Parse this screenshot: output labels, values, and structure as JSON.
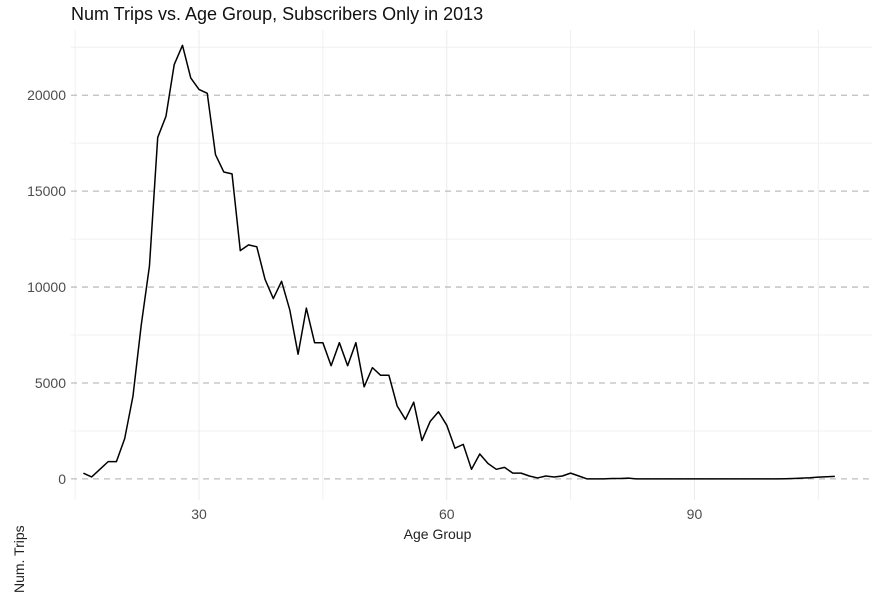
{
  "chart_data": {
    "type": "line",
    "title": "Num Trips vs. Age Group, Subscribers Only in 2013",
    "xlabel": "Age Group",
    "ylabel": "Num. Trips",
    "xlim": [
      14.5,
      111.5
    ],
    "ylim": [
      -1100,
      23400
    ],
    "x_ticks": [
      30,
      60,
      90
    ],
    "y_ticks": [
      0,
      5000,
      10000,
      15000,
      20000
    ],
    "grid": true,
    "legend": "none",
    "line_color": "#000000",
    "series": [
      {
        "x": [
          16,
          17,
          18,
          19,
          20,
          21,
          22,
          23,
          24,
          25,
          26,
          27,
          28,
          29,
          30,
          31,
          32,
          33,
          34,
          35,
          36,
          37,
          38,
          39,
          40,
          41,
          42,
          43,
          44,
          45,
          46,
          47,
          48,
          49,
          50,
          51,
          52,
          53,
          54,
          55,
          56,
          57,
          58,
          59,
          60,
          61,
          62,
          63,
          64,
          65,
          66,
          67,
          68,
          69,
          70,
          71,
          72,
          73,
          74,
          75,
          76,
          77,
          78,
          79,
          80,
          81,
          82,
          83,
          84,
          85,
          86,
          87,
          88,
          89,
          90,
          91,
          92,
          93,
          94,
          95,
          96,
          97,
          98,
          99,
          100,
          101,
          102,
          103,
          104,
          105,
          106,
          107
        ],
        "values": [
          300,
          100,
          500,
          900,
          900,
          2100,
          4300,
          8000,
          11100,
          17800,
          18900,
          21600,
          22600,
          20900,
          20300,
          20100,
          16900,
          16000,
          15900,
          11900,
          12200,
          12100,
          10400,
          9400,
          10300,
          8800,
          6500,
          8900,
          7100,
          7100,
          5900,
          7100,
          5900,
          7100,
          4800,
          5800,
          5400,
          5400,
          3800,
          3100,
          4000,
          2000,
          3000,
          3500,
          2800,
          1600,
          1800,
          500,
          1300,
          800,
          500,
          600,
          300,
          300,
          150,
          50,
          150,
          100,
          150,
          300,
          150,
          0,
          0,
          0,
          20,
          20,
          40,
          0,
          0,
          0,
          0,
          0,
          0,
          0,
          0,
          0,
          0,
          0,
          0,
          0,
          0,
          0,
          0,
          0,
          0,
          10,
          20,
          40,
          60,
          90,
          110,
          130
        ]
      }
    ]
  }
}
